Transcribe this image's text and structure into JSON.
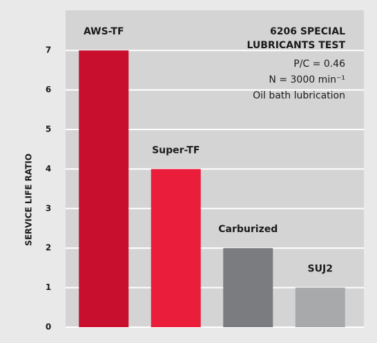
{
  "chart_data": {
    "type": "bar",
    "categories": [
      "AWS-TF",
      "Super-TF",
      "Carburized",
      "SUJ2"
    ],
    "values": [
      7,
      4,
      2,
      1
    ],
    "colors": [
      "#c8102e",
      "#ea1d3b",
      "#7b7c7f",
      "#a8a9ab"
    ],
    "ylabel": "SERVICE LIFE RATIO",
    "title": [
      "6206 SPECIAL",
      "LUBRICANTS TEST"
    ],
    "annotations": [
      "P/C = 0.46",
      "N = 3000 min⁻¹",
      "Oil bath lubrication"
    ],
    "ylim": [
      0,
      8
    ],
    "yticks": [
      0,
      1,
      2,
      3,
      4,
      5,
      6,
      7
    ],
    "grid": true
  }
}
